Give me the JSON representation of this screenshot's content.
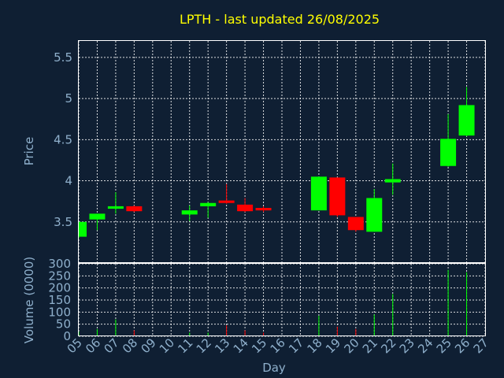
{
  "chart_data": {
    "type": "candlestick",
    "title": "LPTH - last updated 26/08/2025",
    "xlabel": "Day",
    "price_ylabel": "Price",
    "volume_ylabel": "Volume (0000)",
    "x_ticks": [
      "05",
      "06",
      "07",
      "08",
      "09",
      "10",
      "11",
      "12",
      "13",
      "14",
      "15",
      "16",
      "17",
      "18",
      "19",
      "20",
      "21",
      "22",
      "23",
      "24",
      "25",
      "26",
      "27"
    ],
    "price_yticks": [
      3.5,
      4,
      4.5,
      5,
      5.5
    ],
    "price_ytick_labels": [
      "3.5",
      "4",
      "4.5",
      "5",
      "5.5"
    ],
    "price_ylim": [
      3.0,
      5.7
    ],
    "volume_yticks": [
      0,
      50,
      100,
      150,
      200,
      250,
      300
    ],
    "volume_ytick_labels": [
      "0",
      "50",
      "100",
      "150",
      "200",
      "250",
      "300"
    ],
    "volume_ylim": [
      0,
      300
    ],
    "grid": true,
    "colors": {
      "up": "#00ff00",
      "down": "#ff0000",
      "title": "#ffff00",
      "axis_text": "#8fb0cc",
      "background": "#0f1f33"
    },
    "candles": [
      {
        "day": "05",
        "open": 3.32,
        "high": 3.5,
        "low": 3.3,
        "close": 3.5,
        "volume": 20
      },
      {
        "day": "06",
        "open": 3.53,
        "high": 3.6,
        "low": 3.4,
        "close": 3.6,
        "volume": 30
      },
      {
        "day": "07",
        "open": 3.66,
        "high": 3.86,
        "low": 3.6,
        "close": 3.69,
        "volume": 70
      },
      {
        "day": "08",
        "open": 3.69,
        "high": 3.7,
        "low": 3.62,
        "close": 3.63,
        "volume": 25
      },
      {
        "day": "11",
        "open": 3.59,
        "high": 3.7,
        "low": 3.51,
        "close": 3.64,
        "volume": 15
      },
      {
        "day": "12",
        "open": 3.69,
        "high": 3.74,
        "low": 3.55,
        "close": 3.73,
        "volume": 15
      },
      {
        "day": "13",
        "open": 3.76,
        "high": 3.96,
        "low": 3.72,
        "close": 3.73,
        "volume": 45
      },
      {
        "day": "14",
        "open": 3.71,
        "high": 3.79,
        "low": 3.62,
        "close": 3.63,
        "volume": 25
      },
      {
        "day": "15",
        "open": 3.67,
        "high": 3.69,
        "low": 3.62,
        "close": 3.64,
        "volume": 15
      },
      {
        "day": "18",
        "open": 3.64,
        "high": 4.05,
        "low": 3.64,
        "close": 4.05,
        "volume": 85
      },
      {
        "day": "19",
        "open": 4.04,
        "high": 4.04,
        "low": 3.56,
        "close": 3.58,
        "volume": 40
      },
      {
        "day": "20",
        "open": 3.56,
        "high": 3.56,
        "low": 3.38,
        "close": 3.4,
        "volume": 30
      },
      {
        "day": "21",
        "open": 3.38,
        "high": 3.9,
        "low": 3.38,
        "close": 3.79,
        "volume": 90
      },
      {
        "day": "22",
        "open": 3.98,
        "high": 4.21,
        "low": 3.83,
        "close": 4.02,
        "volume": 175
      },
      {
        "day": "25",
        "open": 4.18,
        "high": 4.81,
        "low": 4.17,
        "close": 4.51,
        "volume": 275
      },
      {
        "day": "26",
        "open": 4.55,
        "high": 5.14,
        "low": 4.54,
        "close": 4.92,
        "volume": 265
      }
    ]
  }
}
